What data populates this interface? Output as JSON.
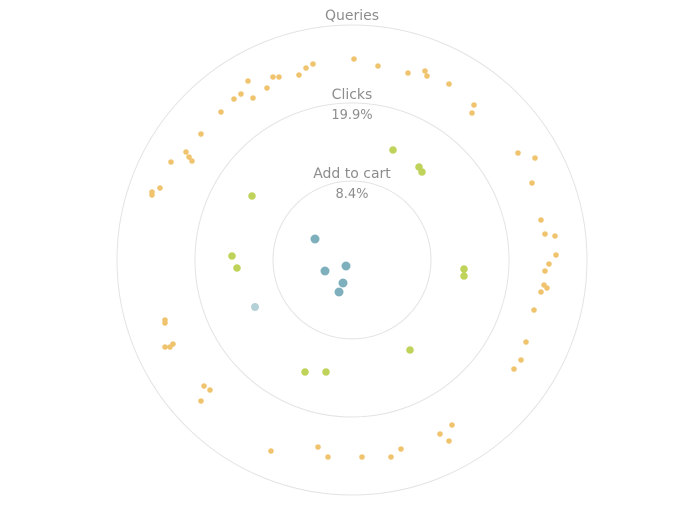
{
  "chart_data": {
    "type": "scatter",
    "subtype": "concentric-ring-funnel",
    "rings": [
      {
        "label": "Queries",
        "percent": "",
        "color": "#f0c46f"
      },
      {
        "label": "Clicks",
        "percent": "19.9%",
        "color": "#bfd35b"
      },
      {
        "label": "Add to cart",
        "percent": "8.4%",
        "color": "#7dafbd"
      }
    ],
    "series": [
      {
        "ring": "Add to cart",
        "color": "#7dafbd",
        "points": [
          [
            315,
            239
          ],
          [
            325,
            271
          ],
          [
            346,
            266
          ],
          [
            343,
            283
          ],
          [
            339,
            292
          ]
        ]
      },
      {
        "ring": "Add to cart (faded)",
        "color": "#b3d1d6",
        "points": [
          [
            255,
            307
          ]
        ]
      },
      {
        "ring": "Clicks",
        "color": "#bfd35b",
        "points": [
          [
            393,
            150
          ],
          [
            419,
            167
          ],
          [
            422,
            172
          ],
          [
            252,
            196
          ],
          [
            232,
            256
          ],
          [
            237,
            268
          ],
          [
            464,
            269
          ],
          [
            464,
            276
          ],
          [
            410,
            350
          ],
          [
            305,
            372
          ],
          [
            326,
            372
          ]
        ]
      },
      {
        "ring": "Queries",
        "color": "#f0c46f",
        "points": [
          [
            354,
            59
          ],
          [
            378,
            66
          ],
          [
            313,
            64
          ],
          [
            306,
            68
          ],
          [
            425,
            71
          ],
          [
            427,
            76
          ],
          [
            408,
            73
          ],
          [
            299,
            75
          ],
          [
            279,
            77
          ],
          [
            273,
            77
          ],
          [
            248,
            81
          ],
          [
            449,
            84
          ],
          [
            267,
            88
          ],
          [
            241,
            94
          ],
          [
            234,
            99
          ],
          [
            253,
            98
          ],
          [
            474,
            105
          ],
          [
            472,
            113
          ],
          [
            221,
            112
          ],
          [
            201,
            134
          ],
          [
            186,
            152
          ],
          [
            189,
            157
          ],
          [
            192,
            161
          ],
          [
            171,
            162
          ],
          [
            518,
            153
          ],
          [
            535,
            158
          ],
          [
            160,
            188
          ],
          [
            152,
            192
          ],
          [
            152,
            195
          ],
          [
            532,
            183
          ],
          [
            541,
            220
          ],
          [
            545,
            234
          ],
          [
            555,
            236
          ],
          [
            556,
            255
          ],
          [
            549,
            264
          ],
          [
            545,
            271
          ],
          [
            544,
            285
          ],
          [
            547,
            288
          ],
          [
            541,
            292
          ],
          [
            534,
            310
          ],
          [
            165,
            320
          ],
          [
            165,
            323
          ],
          [
            526,
            342
          ],
          [
            173,
            344
          ],
          [
            165,
            347
          ],
          [
            170,
            347
          ],
          [
            521,
            360
          ],
          [
            514,
            369
          ],
          [
            204,
            386
          ],
          [
            210,
            390
          ],
          [
            201,
            401
          ],
          [
            452,
            425
          ],
          [
            440,
            434
          ],
          [
            449,
            441
          ],
          [
            271,
            451
          ],
          [
            318,
            447
          ],
          [
            328,
            457
          ],
          [
            362,
            457
          ],
          [
            401,
            449
          ],
          [
            391,
            457
          ]
        ]
      }
    ]
  }
}
